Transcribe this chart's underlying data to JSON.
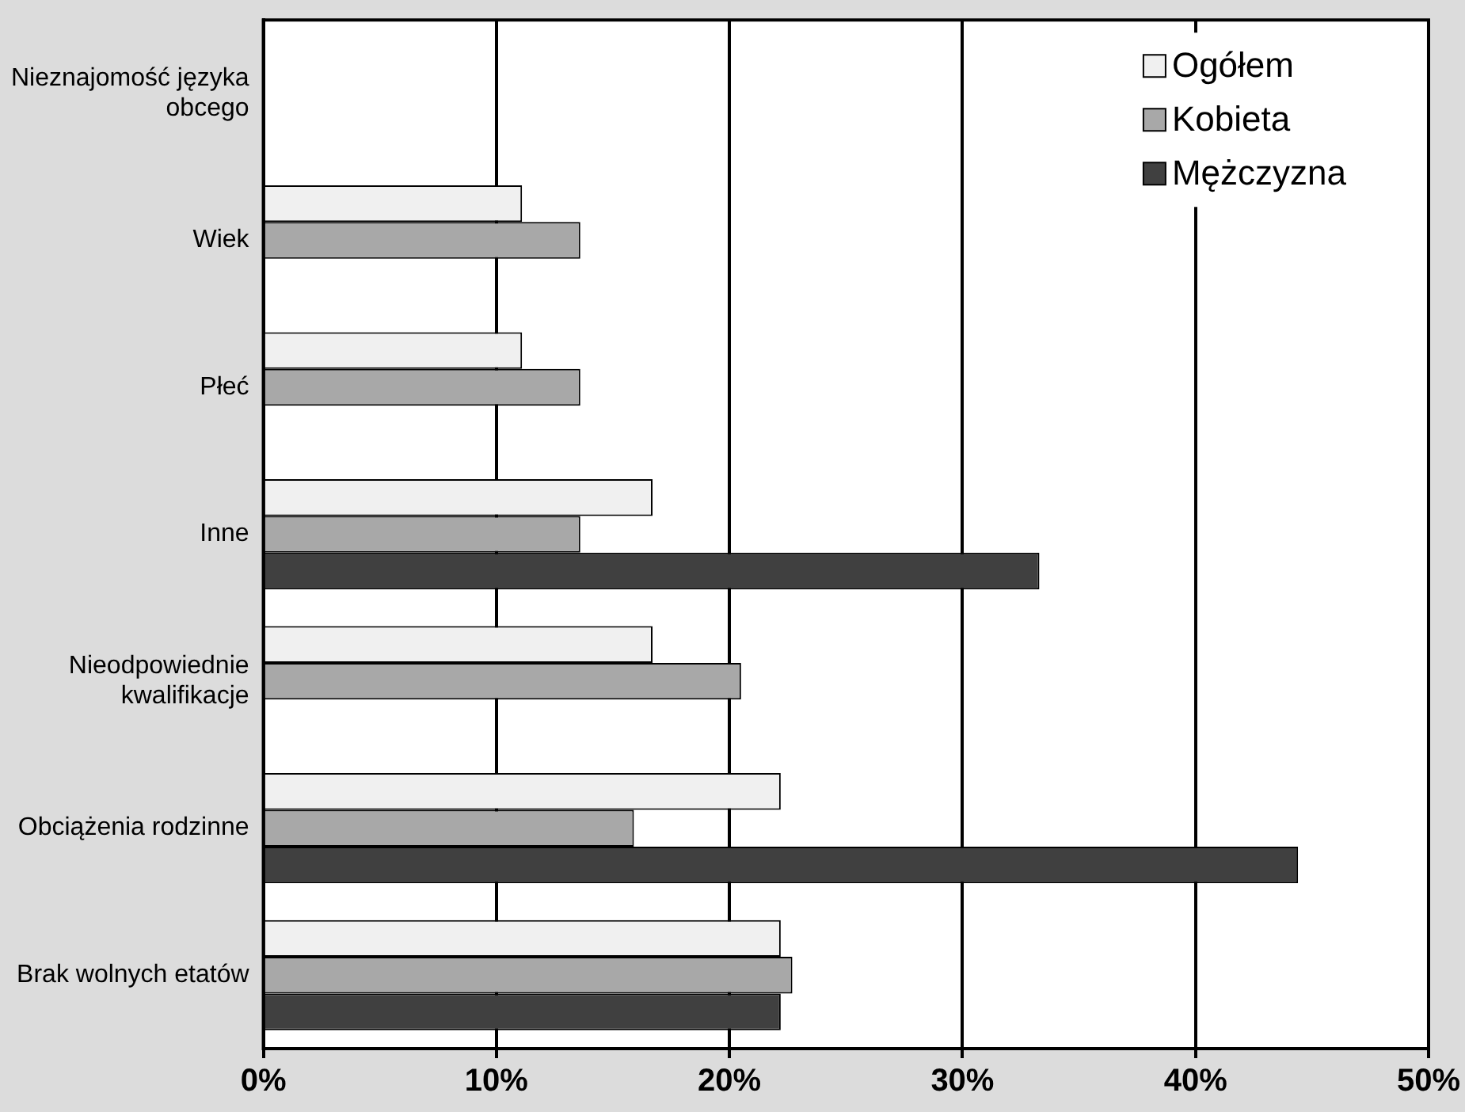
{
  "chart_data": {
    "type": "bar",
    "orientation": "horizontal",
    "categories": [
      "Nieznajomość języka obcego",
      "Wiek",
      "Płeć",
      "Inne",
      "Nieodpowiednie kwalifikacje",
      "Obciążenia rodzinne",
      "Brak wolnych etatów"
    ],
    "series": [
      {
        "name": "Ogółem",
        "color": "#f0f0f0",
        "values": [
          null,
          11.1,
          11.1,
          16.7,
          16.7,
          22.2,
          22.2
        ]
      },
      {
        "name": "Kobieta",
        "color": "#a8a8a8",
        "values": [
          null,
          13.6,
          13.6,
          13.6,
          20.5,
          15.9,
          22.7
        ]
      },
      {
        "name": "Mężczyzna",
        "color": "#404040",
        "values": [
          null,
          null,
          null,
          33.3,
          null,
          44.4,
          22.2
        ]
      }
    ],
    "xlim": [
      0,
      50
    ],
    "xticks": [
      {
        "value": 0,
        "label": "0%"
      },
      {
        "value": 10,
        "label": "10%"
      },
      {
        "value": 20,
        "label": "20%"
      },
      {
        "value": 30,
        "label": "30%"
      },
      {
        "value": 40,
        "label": "40%"
      },
      {
        "value": 50,
        "label": "50%"
      }
    ],
    "grid": "x",
    "legend": "top right"
  }
}
